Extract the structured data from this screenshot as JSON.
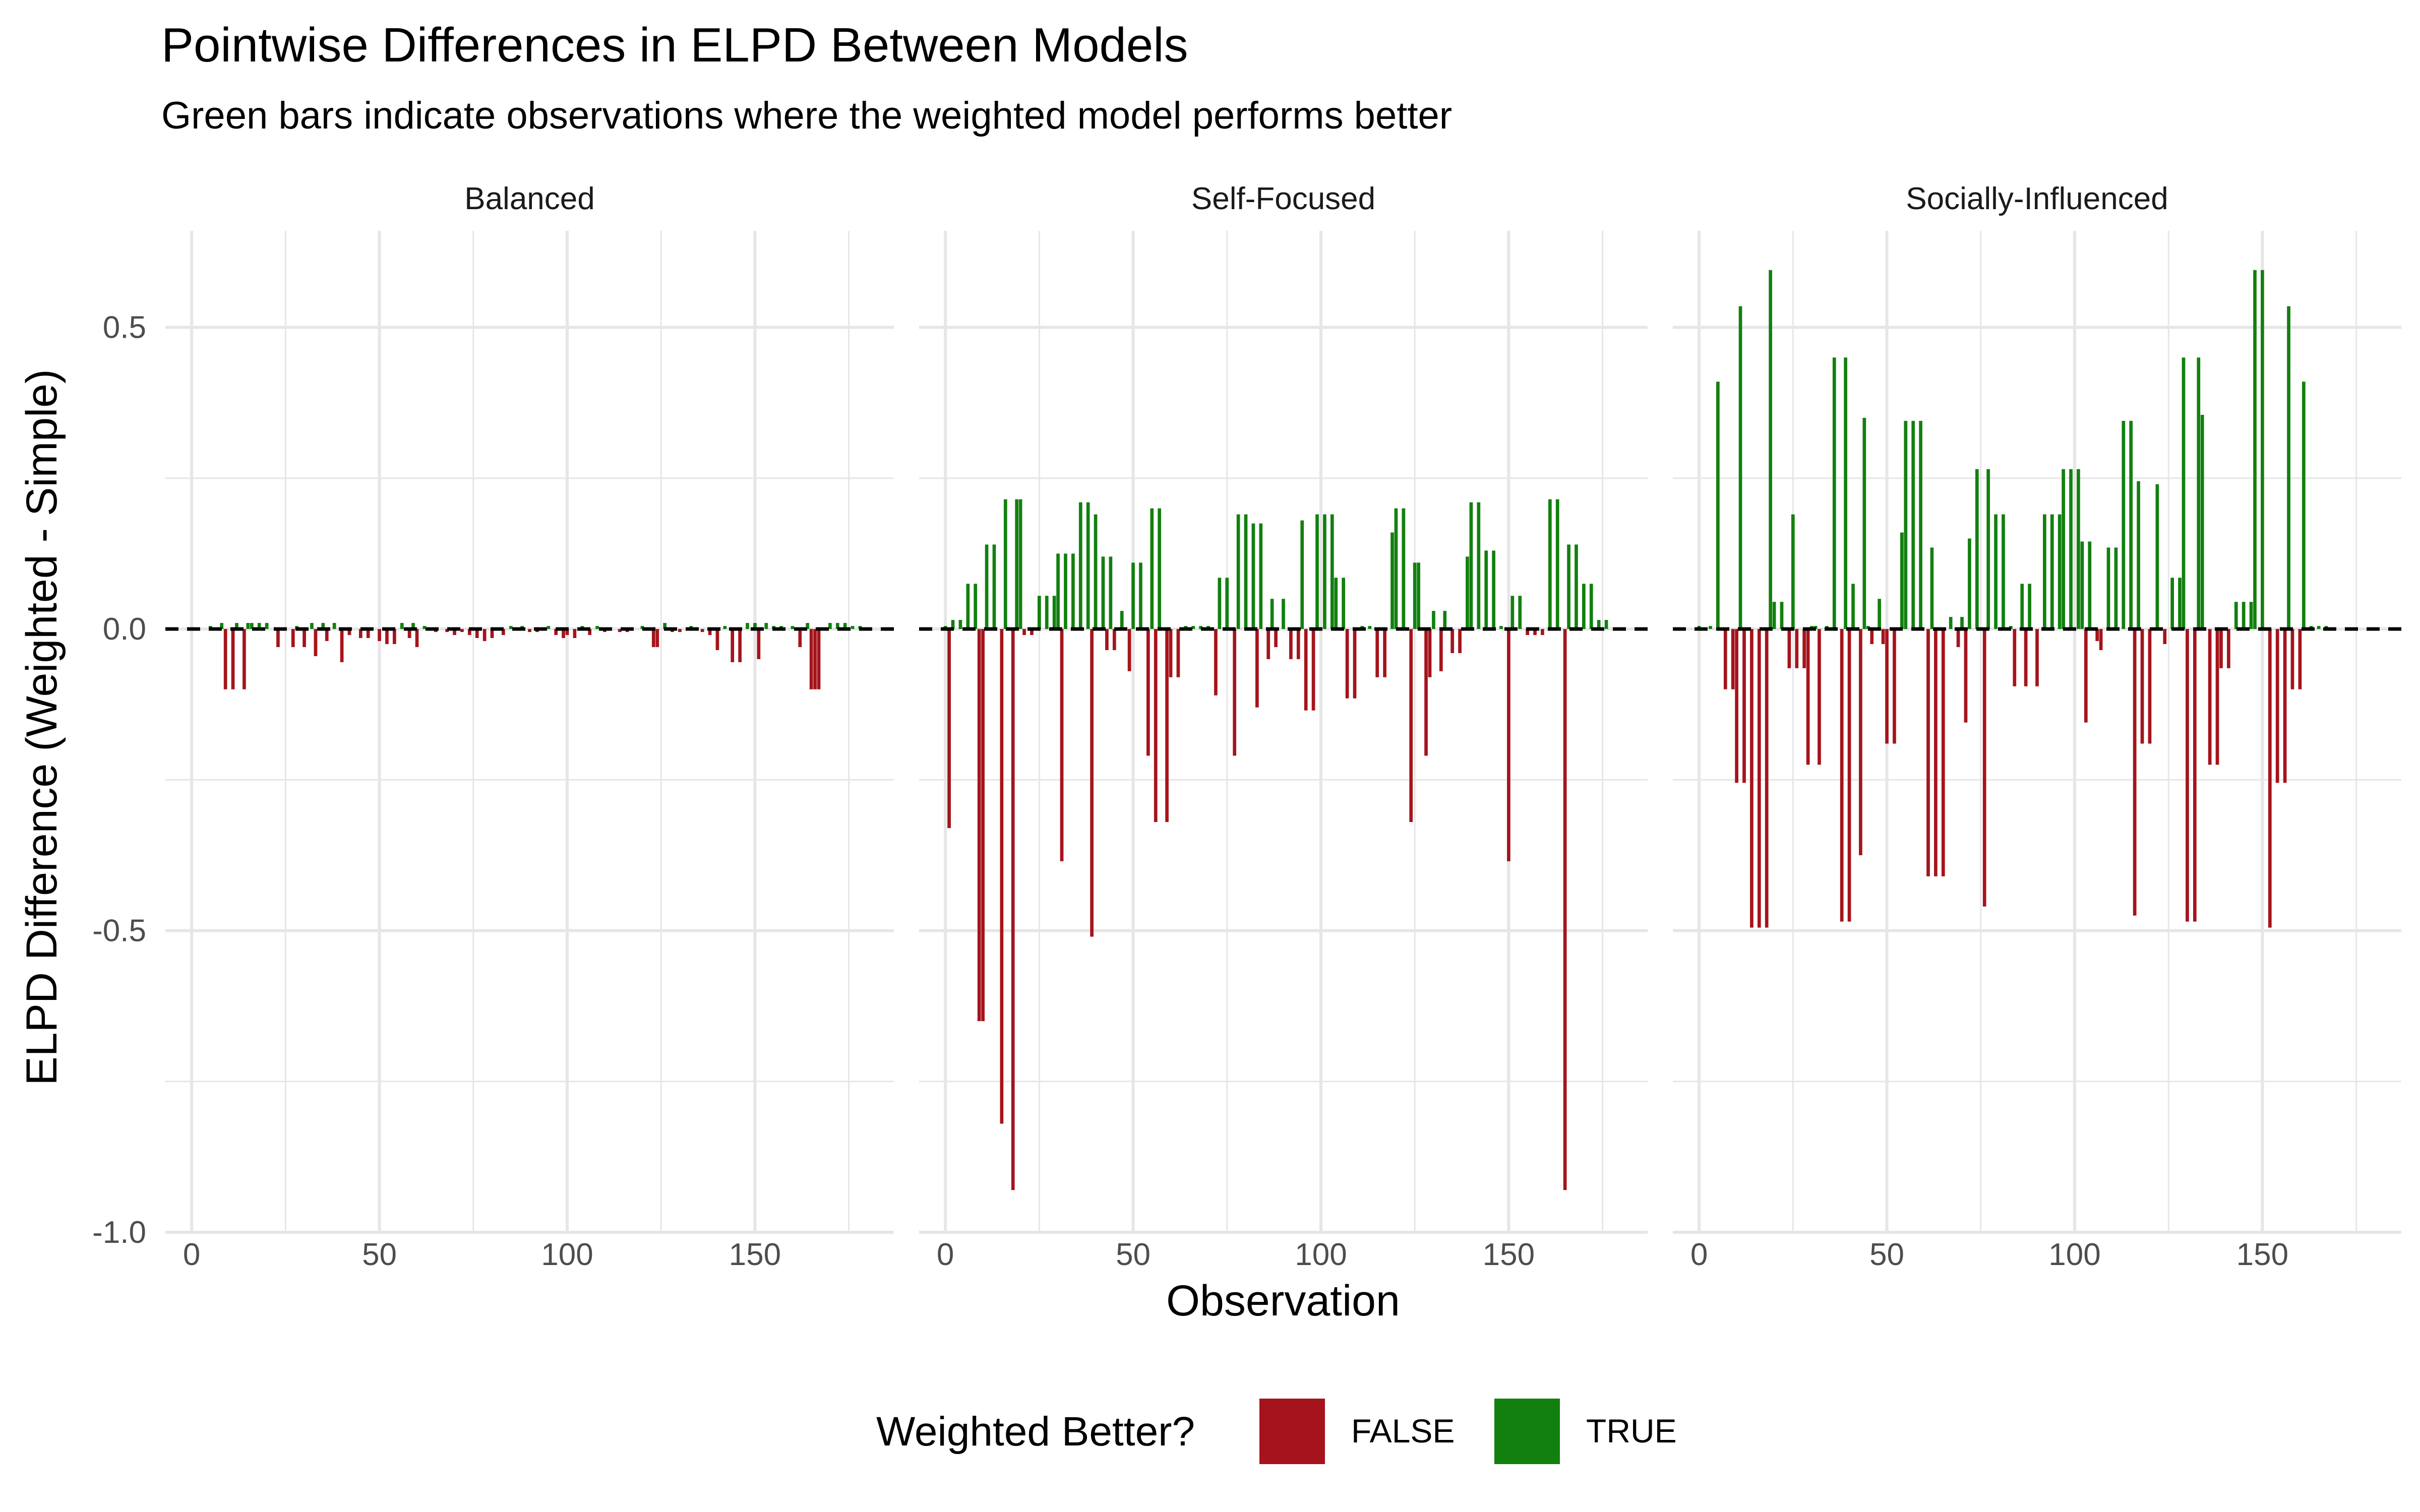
{
  "chart_data": {
    "type": "bar",
    "title": "Pointwise Differences in ELPD Between Models",
    "subtitle": "Green bars indicate observations where the weighted model performs better",
    "xlabel": "Observation",
    "ylabel": "ELPD Difference (Weighted - Simple)",
    "xlim": [
      -7,
      187
    ],
    "ylim": [
      -1.0,
      0.66
    ],
    "x_ticks": [
      0,
      50,
      100,
      150
    ],
    "y_ticks": [
      0.5,
      0.0,
      -0.5,
      -1.0
    ],
    "y_tick_labels": [
      "0.5",
      "0.0",
      "-0.5",
      "-1.0"
    ],
    "grid": true,
    "reference_line": {
      "y": 0,
      "style": "dashed"
    },
    "colors": {
      "false": "#A5141C",
      "true": "#12800F",
      "grid": "#E6E6E6",
      "reference": "#000000"
    },
    "legend": {
      "title": "Weighted Better?",
      "position": "bottom",
      "entries": [
        {
          "label": "FALSE",
          "color": "#A5141C"
        },
        {
          "label": "TRUE",
          "color": "#12800F"
        }
      ]
    },
    "panels": [
      {
        "name": "Balanced",
        "points": [
          [
            5,
            0.005
          ],
          [
            8,
            0.01
          ],
          [
            9,
            -0.1
          ],
          [
            11,
            -0.1
          ],
          [
            12,
            0.01
          ],
          [
            14,
            -0.1
          ],
          [
            15,
            0.01
          ],
          [
            16,
            0.01
          ],
          [
            18,
            0.01
          ],
          [
            20,
            0.01
          ],
          [
            23,
            -0.03
          ],
          [
            27,
            -0.03
          ],
          [
            28,
            0.005
          ],
          [
            30,
            -0.03
          ],
          [
            32,
            0.01
          ],
          [
            33,
            -0.045
          ],
          [
            35,
            0.01
          ],
          [
            36,
            -0.02
          ],
          [
            38,
            0.01
          ],
          [
            40,
            -0.055
          ],
          [
            42,
            -0.01
          ],
          [
            45,
            -0.015
          ],
          [
            47,
            -0.015
          ],
          [
            50,
            -0.02
          ],
          [
            52,
            -0.025
          ],
          [
            54,
            -0.025
          ],
          [
            56,
            0.01
          ],
          [
            58,
            -0.015
          ],
          [
            59,
            0.01
          ],
          [
            60,
            -0.03
          ],
          [
            62,
            0.005
          ],
          [
            65,
            -0.005
          ],
          [
            68,
            -0.005
          ],
          [
            70,
            -0.01
          ],
          [
            72,
            -0.005
          ],
          [
            74,
            -0.01
          ],
          [
            76,
            -0.015
          ],
          [
            78,
            -0.02
          ],
          [
            80,
            -0.015
          ],
          [
            83,
            -0.01
          ],
          [
            85,
            0.005
          ],
          [
            88,
            0.005
          ],
          [
            90,
            -0.005
          ],
          [
            92,
            -0.005
          ],
          [
            95,
            0.005
          ],
          [
            97,
            -0.01
          ],
          [
            99,
            -0.015
          ],
          [
            100,
            -0.01
          ],
          [
            102,
            -0.015
          ],
          [
            104,
            0.005
          ],
          [
            106,
            -0.01
          ],
          [
            108,
            0.005
          ],
          [
            110,
            -0.005
          ],
          [
            114,
            -0.005
          ],
          [
            116,
            -0.005
          ],
          [
            120,
            0.005
          ],
          [
            123,
            -0.03
          ],
          [
            124,
            -0.03
          ],
          [
            126,
            0.01
          ],
          [
            128,
            -0.005
          ],
          [
            130,
            -0.005
          ],
          [
            133,
            0.005
          ],
          [
            136,
            -0.005
          ],
          [
            138,
            -0.01
          ],
          [
            140,
            -0.035
          ],
          [
            142,
            0.005
          ],
          [
            144,
            -0.055
          ],
          [
            146,
            -0.055
          ],
          [
            148,
            0.01
          ],
          [
            150,
            0.01
          ],
          [
            151,
            -0.05
          ],
          [
            153,
            0.01
          ],
          [
            155,
            0.005
          ],
          [
            157,
            0.005
          ],
          [
            160,
            0.005
          ],
          [
            162,
            -0.03
          ],
          [
            164,
            0.01
          ],
          [
            165,
            -0.1
          ],
          [
            166,
            -0.1
          ],
          [
            167,
            -0.1
          ],
          [
            170,
            0.01
          ],
          [
            172,
            0.01
          ],
          [
            174,
            0.01
          ],
          [
            176,
            0.005
          ],
          [
            178,
            0.005
          ]
        ]
      },
      {
        "name": "Self-Focused",
        "points": [
          [
            0,
            0.005
          ],
          [
            1,
            -0.33
          ],
          [
            2,
            0.015
          ],
          [
            4,
            0.015
          ],
          [
            6,
            0.075
          ],
          [
            8,
            0.075
          ],
          [
            9,
            -0.65
          ],
          [
            10,
            -0.65
          ],
          [
            11,
            0.14
          ],
          [
            13,
            0.14
          ],
          [
            15,
            -0.82
          ],
          [
            16,
            0.215
          ],
          [
            18,
            -0.93
          ],
          [
            19,
            0.215
          ],
          [
            20,
            0.215
          ],
          [
            21,
            -0.01
          ],
          [
            23,
            -0.01
          ],
          [
            25,
            0.055
          ],
          [
            27,
            0.055
          ],
          [
            29,
            0.055
          ],
          [
            30,
            0.125
          ],
          [
            31,
            -0.385
          ],
          [
            32,
            0.125
          ],
          [
            34,
            0.125
          ],
          [
            36,
            0.21
          ],
          [
            38,
            0.21
          ],
          [
            39,
            -0.51
          ],
          [
            40,
            0.19
          ],
          [
            42,
            0.12
          ],
          [
            43,
            -0.035
          ],
          [
            44,
            0.12
          ],
          [
            45,
            -0.035
          ],
          [
            47,
            0.03
          ],
          [
            49,
            -0.07
          ],
          [
            50,
            0.11
          ],
          [
            52,
            0.11
          ],
          [
            54,
            -0.21
          ],
          [
            55,
            0.2
          ],
          [
            56,
            -0.32
          ],
          [
            57,
            0.2
          ],
          [
            59,
            -0.32
          ],
          [
            60,
            -0.08
          ],
          [
            62,
            -0.08
          ],
          [
            64,
            0.005
          ],
          [
            66,
            0.005
          ],
          [
            68,
            0.005
          ],
          [
            70,
            0.005
          ],
          [
            72,
            -0.11
          ],
          [
            73,
            0.085
          ],
          [
            75,
            0.085
          ],
          [
            77,
            -0.21
          ],
          [
            78,
            0.19
          ],
          [
            80,
            0.19
          ],
          [
            82,
            0.175
          ],
          [
            83,
            -0.13
          ],
          [
            84,
            0.175
          ],
          [
            86,
            -0.05
          ],
          [
            87,
            0.05
          ],
          [
            88,
            -0.03
          ],
          [
            90,
            0.05
          ],
          [
            92,
            -0.05
          ],
          [
            94,
            -0.05
          ],
          [
            95,
            0.18
          ],
          [
            96,
            -0.135
          ],
          [
            98,
            -0.135
          ],
          [
            99,
            0.19
          ],
          [
            101,
            0.19
          ],
          [
            103,
            0.19
          ],
          [
            104,
            0.085
          ],
          [
            106,
            0.085
          ],
          [
            107,
            -0.115
          ],
          [
            109,
            -0.115
          ],
          [
            111,
            0.005
          ],
          [
            113,
            0.005
          ],
          [
            115,
            -0.08
          ],
          [
            117,
            -0.08
          ],
          [
            119,
            0.16
          ],
          [
            120,
            0.2
          ],
          [
            122,
            0.2
          ],
          [
            124,
            -0.32
          ],
          [
            125,
            0.11
          ],
          [
            126,
            0.11
          ],
          [
            128,
            -0.21
          ],
          [
            129,
            -0.08
          ],
          [
            130,
            0.03
          ],
          [
            132,
            -0.07
          ],
          [
            133,
            0.03
          ],
          [
            135,
            -0.04
          ],
          [
            137,
            -0.04
          ],
          [
            139,
            0.12
          ],
          [
            140,
            0.21
          ],
          [
            142,
            0.21
          ],
          [
            144,
            0.13
          ],
          [
            146,
            0.13
          ],
          [
            148,
            0.005
          ],
          [
            150,
            -0.385
          ],
          [
            151,
            0.055
          ],
          [
            153,
            0.055
          ],
          [
            155,
            -0.01
          ],
          [
            157,
            -0.01
          ],
          [
            159,
            -0.01
          ],
          [
            161,
            0.215
          ],
          [
            163,
            0.215
          ],
          [
            165,
            -0.93
          ],
          [
            166,
            0.14
          ],
          [
            168,
            0.14
          ],
          [
            170,
            0.075
          ],
          [
            172,
            0.075
          ],
          [
            174,
            0.015
          ],
          [
            176,
            0.015
          ]
        ]
      },
      {
        "name": "Socially-Influenced",
        "points": [
          [
            0,
            0.005
          ],
          [
            3,
            0.005
          ],
          [
            5,
            0.41
          ],
          [
            7,
            -0.1
          ],
          [
            9,
            -0.1
          ],
          [
            10,
            -0.255
          ],
          [
            11,
            0.535
          ],
          [
            12,
            -0.255
          ],
          [
            14,
            -0.495
          ],
          [
            16,
            -0.495
          ],
          [
            18,
            -0.495
          ],
          [
            19,
            0.595
          ],
          [
            20,
            0.045
          ],
          [
            22,
            0.045
          ],
          [
            24,
            -0.065
          ],
          [
            25,
            0.19
          ],
          [
            26,
            -0.065
          ],
          [
            28,
            -0.065
          ],
          [
            29,
            -0.225
          ],
          [
            30,
            0.005
          ],
          [
            31,
            0.005
          ],
          [
            32,
            -0.225
          ],
          [
            34,
            0.005
          ],
          [
            36,
            0.45
          ],
          [
            38,
            -0.485
          ],
          [
            39,
            0.45
          ],
          [
            40,
            -0.485
          ],
          [
            41,
            0.075
          ],
          [
            43,
            -0.375
          ],
          [
            44,
            0.35
          ],
          [
            45,
            0.005
          ],
          [
            46,
            -0.025
          ],
          [
            48,
            0.05
          ],
          [
            49,
            -0.025
          ],
          [
            50,
            -0.19
          ],
          [
            52,
            -0.19
          ],
          [
            54,
            0.16
          ],
          [
            55,
            0.345
          ],
          [
            57,
            0.345
          ],
          [
            59,
            0.345
          ],
          [
            61,
            -0.41
          ],
          [
            62,
            0.135
          ],
          [
            63,
            -0.41
          ],
          [
            65,
            -0.41
          ],
          [
            67,
            0.02
          ],
          [
            69,
            -0.03
          ],
          [
            70,
            0.02
          ],
          [
            71,
            -0.155
          ],
          [
            72,
            0.15
          ],
          [
            74,
            0.265
          ],
          [
            76,
            -0.46
          ],
          [
            77,
            0.265
          ],
          [
            79,
            0.19
          ],
          [
            81,
            0.19
          ],
          [
            83,
            0.005
          ],
          [
            84,
            -0.095
          ],
          [
            86,
            0.075
          ],
          [
            87,
            -0.095
          ],
          [
            88,
            0.075
          ],
          [
            90,
            -0.095
          ],
          [
            92,
            0.19
          ],
          [
            94,
            0.19
          ],
          [
            96,
            0.19
          ],
          [
            97,
            0.265
          ],
          [
            99,
            0.265
          ],
          [
            101,
            0.265
          ],
          [
            102,
            0.145
          ],
          [
            103,
            -0.155
          ],
          [
            104,
            0.145
          ],
          [
            106,
            -0.02
          ],
          [
            107,
            -0.035
          ],
          [
            109,
            0.135
          ],
          [
            111,
            0.135
          ],
          [
            113,
            0.345
          ],
          [
            115,
            0.345
          ],
          [
            116,
            -0.475
          ],
          [
            117,
            0.245
          ],
          [
            118,
            -0.19
          ],
          [
            120,
            -0.19
          ],
          [
            122,
            0.24
          ],
          [
            124,
            -0.025
          ],
          [
            126,
            0.085
          ],
          [
            128,
            0.085
          ],
          [
            129,
            0.45
          ],
          [
            130,
            -0.485
          ],
          [
            132,
            -0.485
          ],
          [
            133,
            0.45
          ],
          [
            134,
            0.355
          ],
          [
            136,
            -0.225
          ],
          [
            138,
            -0.225
          ],
          [
            139,
            -0.065
          ],
          [
            141,
            -0.065
          ],
          [
            143,
            0.045
          ],
          [
            145,
            0.045
          ],
          [
            147,
            0.045
          ],
          [
            148,
            0.595
          ],
          [
            150,
            0.595
          ],
          [
            152,
            -0.495
          ],
          [
            154,
            -0.255
          ],
          [
            156,
            -0.255
          ],
          [
            157,
            0.535
          ],
          [
            158,
            -0.1
          ],
          [
            160,
            -0.1
          ],
          [
            161,
            0.41
          ],
          [
            163,
            0.005
          ],
          [
            165,
            0.005
          ],
          [
            167,
            0.005
          ]
        ]
      }
    ]
  }
}
